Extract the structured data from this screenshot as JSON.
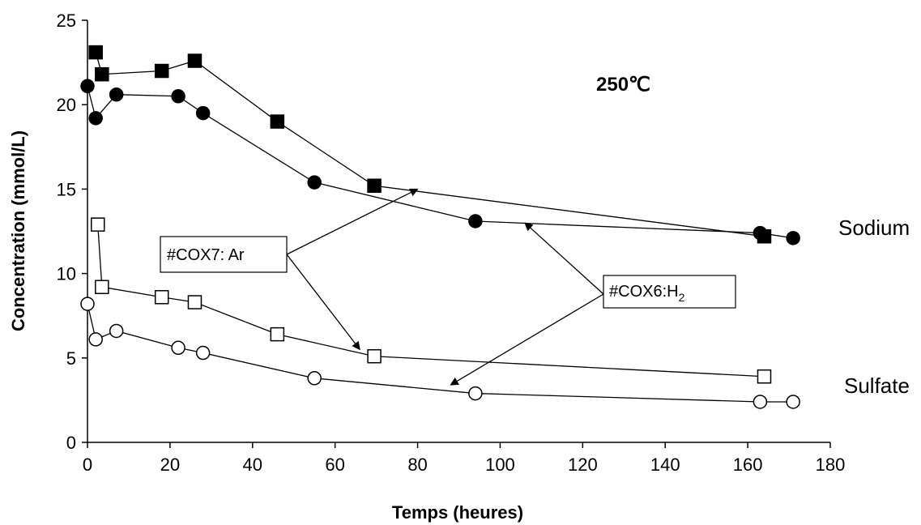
{
  "chart_data": {
    "type": "scatter",
    "annotation_temperature": "250℃",
    "xlabel": "Temps (heures)",
    "ylabel": "Concentration (mmol/L)",
    "xlim": [
      0,
      180
    ],
    "ylim": [
      0,
      25
    ],
    "x_ticks": [
      "0",
      "20",
      "40",
      "60",
      "80",
      "100",
      "120",
      "140",
      "160",
      "180"
    ],
    "y_ticks": [
      "0",
      "5",
      "10",
      "15",
      "20",
      "25"
    ],
    "grid": false,
    "series": [
      {
        "marker": "filled-square",
        "x": [
          2,
          3.5,
          18,
          26,
          46,
          69.5,
          164
        ],
        "y": [
          23.1,
          21.8,
          22.0,
          22.6,
          19.0,
          15.2,
          12.2
        ]
      },
      {
        "marker": "filled-circle",
        "x": [
          0,
          2,
          7,
          22,
          28,
          55,
          94,
          163,
          171
        ],
        "y": [
          21.1,
          19.2,
          20.6,
          20.5,
          19.5,
          15.4,
          13.1,
          12.4,
          12.1
        ]
      },
      {
        "marker": "open-square",
        "x": [
          2.5,
          3.5,
          18,
          26,
          46,
          69.5,
          164
        ],
        "y": [
          12.9,
          9.2,
          8.6,
          8.3,
          6.4,
          5.1,
          3.9
        ]
      },
      {
        "marker": "open-circle",
        "x": [
          0,
          2,
          7,
          22,
          28,
          55,
          94,
          163,
          171
        ],
        "y": [
          8.2,
          6.1,
          6.6,
          5.6,
          5.3,
          3.8,
          2.9,
          2.4,
          2.4
        ]
      }
    ],
    "group_labels": {
      "top": "Sodium",
      "bottom": "Sulfate"
    },
    "callouts": [
      {
        "label": "#COX7: Ar",
        "targets": [
          [
            80,
            15.0
          ],
          [
            66,
            5.5
          ]
        ]
      },
      {
        "label_main": "#COX6:H",
        "label_sub": "2",
        "targets": [
          [
            106,
            13.0
          ],
          [
            88,
            3.4
          ]
        ]
      }
    ]
  }
}
